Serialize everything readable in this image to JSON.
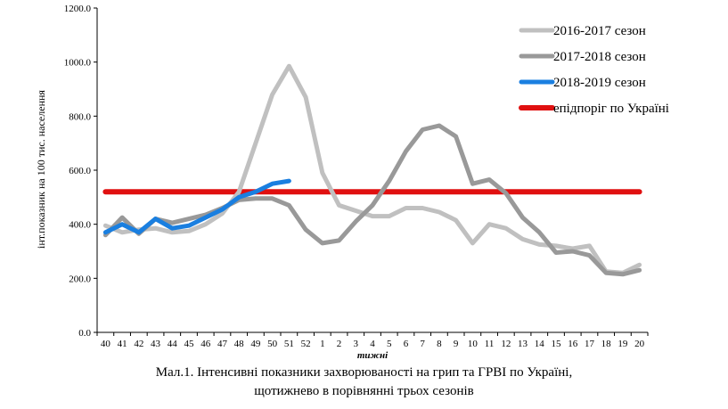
{
  "chart_data": {
    "type": "line",
    "xlabel": "тижні",
    "ylabel": "інт.показник на 100 тис. населення",
    "ylim": [
      0,
      1200
    ],
    "y_ticks": [
      "0.0",
      "200.0",
      "400.0",
      "600.0",
      "800.0",
      "1000.0",
      "1200.0"
    ],
    "categories": [
      "40",
      "41",
      "42",
      "43",
      "44",
      "45",
      "46",
      "47",
      "48",
      "49",
      "50",
      "51",
      "52",
      "1",
      "2",
      "3",
      "4",
      "5",
      "6",
      "7",
      "8",
      "9",
      "10",
      "11",
      "12",
      "13",
      "14",
      "15",
      "16",
      "17",
      "18",
      "19",
      "20"
    ],
    "grid": false,
    "legend_position": "top-right",
    "series": [
      {
        "name": "2016-2017 сезон",
        "color": "#c0c0c0",
        "values": [
          395,
          370,
          380,
          385,
          370,
          375,
          400,
          440,
          520,
          700,
          880,
          985,
          870,
          590,
          470,
          450,
          430,
          430,
          460,
          460,
          445,
          415,
          330,
          400,
          385,
          345,
          325,
          320,
          310,
          320,
          225,
          220,
          250
        ]
      },
      {
        "name": "2017-2018 сезон",
        "color": "#999999",
        "values": [
          360,
          425,
          365,
          420,
          405,
          420,
          435,
          460,
          490,
          495,
          495,
          470,
          380,
          330,
          340,
          410,
          470,
          560,
          670,
          750,
          765,
          725,
          550,
          565,
          515,
          425,
          370,
          295,
          300,
          285,
          220,
          215,
          230
        ]
      },
      {
        "name": "2018-2019 сезон",
        "color": "#1a7fe0",
        "values": [
          370,
          400,
          370,
          420,
          385,
          395,
          425,
          455,
          500,
          520,
          550,
          560,
          null,
          null,
          null,
          null,
          null,
          null,
          null,
          null,
          null,
          null,
          null,
          null,
          null,
          null,
          null,
          null,
          null,
          null,
          null,
          null,
          null
        ]
      },
      {
        "name": "епідпоріг по Україні",
        "color": "#e01010",
        "values": [
          520,
          520,
          520,
          520,
          520,
          520,
          520,
          520,
          520,
          520,
          520,
          520,
          520,
          520,
          520,
          520,
          520,
          520,
          520,
          520,
          520,
          520,
          520,
          520,
          520,
          520,
          520,
          520,
          520,
          520,
          520,
          520,
          520
        ]
      }
    ]
  },
  "caption": {
    "line1": "Мал.1. Інтенсивні показники захворюваності на грип та ГРВІ по Україні,",
    "line2": "щотижнево в порівнянні трьох сезонів"
  }
}
